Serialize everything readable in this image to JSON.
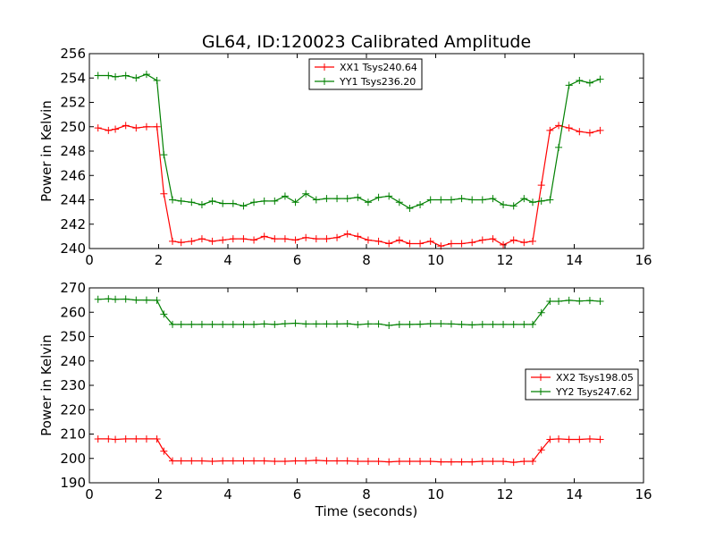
{
  "title": "GL64, ID:120023 Calibrated Amplitude",
  "chart_data": [
    {
      "type": "line",
      "ylabel": "Power in Kelvin",
      "xlabel": "",
      "xlim": [
        0,
        16
      ],
      "ylim": [
        240,
        256
      ],
      "xticks": [
        0,
        2,
        4,
        6,
        8,
        10,
        12,
        14,
        16
      ],
      "yticks": [
        240,
        242,
        244,
        246,
        248,
        250,
        252,
        254,
        256
      ],
      "grid": false,
      "legend_position": "upper center",
      "x": [
        0.25,
        0.55,
        0.75,
        1.05,
        1.35,
        1.65,
        1.95,
        2.15,
        2.4,
        2.65,
        2.95,
        3.25,
        3.55,
        3.85,
        4.15,
        4.45,
        4.75,
        5.05,
        5.35,
        5.65,
        5.95,
        6.25,
        6.55,
        6.85,
        7.15,
        7.45,
        7.75,
        8.05,
        8.35,
        8.65,
        8.95,
        9.25,
        9.55,
        9.85,
        10.15,
        10.45,
        10.75,
        11.05,
        11.35,
        11.65,
        11.95,
        12.25,
        12.55,
        12.8,
        13.05,
        13.3,
        13.55,
        13.85,
        14.15,
        14.45,
        14.75
      ],
      "series": [
        {
          "name": "XX1 Tsys240.64",
          "color": "#ff0000",
          "values": [
            249.9,
            249.7,
            249.8,
            250.1,
            249.9,
            250.0,
            250.0,
            244.5,
            240.6,
            240.5,
            240.6,
            240.8,
            240.6,
            240.7,
            240.8,
            240.8,
            240.7,
            241.0,
            240.8,
            240.8,
            240.7,
            240.9,
            240.8,
            240.8,
            240.9,
            241.2,
            241.0,
            240.7,
            240.6,
            240.4,
            240.7,
            240.4,
            240.4,
            240.6,
            240.2,
            240.4,
            240.4,
            240.5,
            240.7,
            240.8,
            240.3,
            240.7,
            240.5,
            240.6,
            245.2,
            249.7,
            250.1,
            249.9,
            249.6,
            249.5,
            249.7
          ]
        },
        {
          "name": "YY1 Tsys236.20",
          "color": "#008000",
          "values": [
            254.2,
            254.2,
            254.1,
            254.2,
            254.0,
            254.3,
            253.8,
            247.7,
            244.0,
            243.9,
            243.8,
            243.6,
            243.9,
            243.7,
            243.7,
            243.5,
            243.8,
            243.9,
            243.9,
            244.3,
            243.8,
            244.5,
            244.0,
            244.1,
            244.1,
            244.1,
            244.2,
            243.8,
            244.2,
            244.3,
            243.8,
            243.3,
            243.6,
            244.0,
            244.0,
            244.0,
            244.1,
            244.0,
            244.0,
            244.1,
            243.6,
            243.5,
            244.1,
            243.8,
            243.9,
            244.0,
            248.3,
            253.4,
            253.8,
            253.6,
            253.9
          ]
        }
      ]
    },
    {
      "type": "line",
      "ylabel": "Power in Kelvin",
      "xlabel": "Time (seconds)",
      "xlim": [
        0,
        16
      ],
      "ylim": [
        190,
        270
      ],
      "xticks": [
        0,
        2,
        4,
        6,
        8,
        10,
        12,
        14,
        16
      ],
      "yticks": [
        190,
        200,
        210,
        220,
        230,
        240,
        250,
        260,
        270
      ],
      "grid": false,
      "legend_position": "center right",
      "x": [
        0.25,
        0.55,
        0.75,
        1.05,
        1.35,
        1.65,
        1.95,
        2.15,
        2.4,
        2.65,
        2.95,
        3.25,
        3.55,
        3.85,
        4.15,
        4.45,
        4.75,
        5.05,
        5.35,
        5.65,
        5.95,
        6.25,
        6.55,
        6.85,
        7.15,
        7.45,
        7.75,
        8.05,
        8.35,
        8.65,
        8.95,
        9.25,
        9.55,
        9.85,
        10.15,
        10.45,
        10.75,
        11.05,
        11.35,
        11.65,
        11.95,
        12.25,
        12.55,
        12.8,
        13.05,
        13.3,
        13.55,
        13.85,
        14.15,
        14.45,
        14.75
      ],
      "series": [
        {
          "name": "XX2 Tsys198.05",
          "color": "#ff0000",
          "values": [
            208.0,
            208.0,
            207.8,
            208.0,
            208.0,
            208.0,
            208.0,
            203.0,
            199.0,
            199.0,
            199.0,
            199.0,
            198.8,
            199.0,
            199.0,
            199.0,
            199.0,
            199.0,
            198.8,
            198.8,
            199.0,
            199.0,
            199.2,
            199.0,
            199.0,
            199.0,
            198.8,
            198.8,
            198.8,
            198.6,
            198.8,
            198.8,
            198.8,
            198.8,
            198.6,
            198.6,
            198.6,
            198.6,
            198.8,
            198.8,
            198.8,
            198.4,
            198.8,
            198.8,
            203.5,
            207.8,
            208.0,
            207.8,
            207.8,
            208.0,
            207.8
          ]
        },
        {
          "name": "YY2 Tsys247.62",
          "color": "#008000",
          "values": [
            265.3,
            265.5,
            265.3,
            265.4,
            265.0,
            265.0,
            264.9,
            259.2,
            255.0,
            255.0,
            255.0,
            255.0,
            255.0,
            255.0,
            255.0,
            255.0,
            255.0,
            255.2,
            255.0,
            255.3,
            255.5,
            255.2,
            255.2,
            255.2,
            255.2,
            255.3,
            254.9,
            255.2,
            255.2,
            254.6,
            255.0,
            255.0,
            255.1,
            255.3,
            255.3,
            255.2,
            255.0,
            254.8,
            255.0,
            255.0,
            255.0,
            255.0,
            255.0,
            255.0,
            259.8,
            264.5,
            264.5,
            264.9,
            264.6,
            264.8,
            264.5
          ]
        }
      ]
    }
  ]
}
